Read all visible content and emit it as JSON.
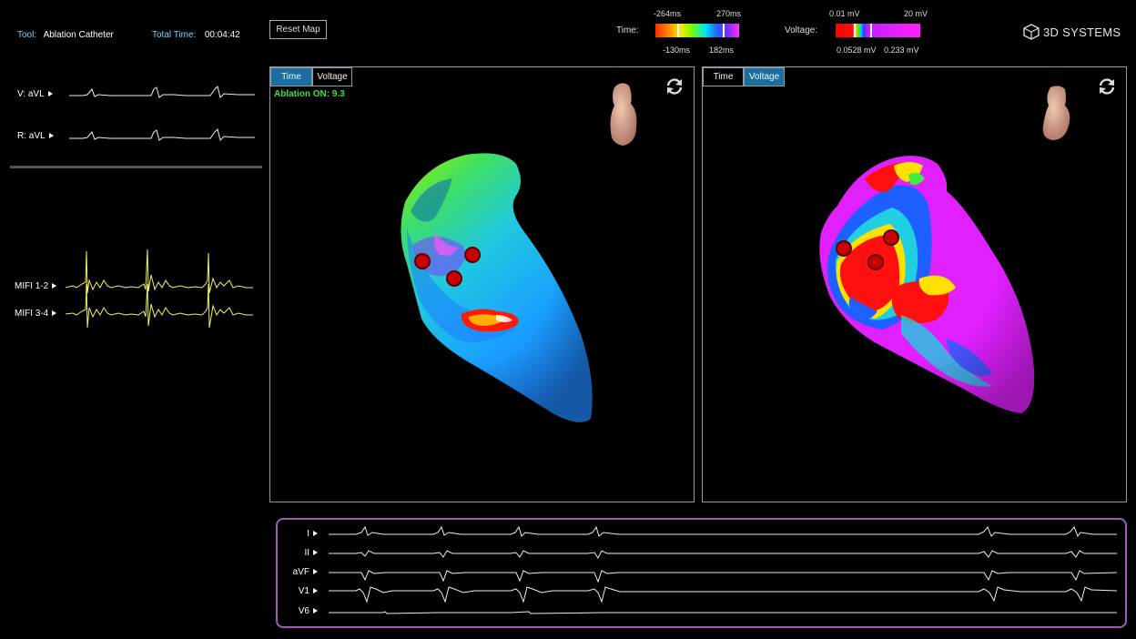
{
  "header": {
    "tool_label": "Tool:",
    "tool_value": "Ablation Catheter",
    "total_time_label": "Total Time:",
    "total_time_value": "00:04:42",
    "reset_button": "Reset Map",
    "brand": "3D SYSTEMS"
  },
  "time_scale": {
    "label": "Time:",
    "top_left": "-264ms",
    "top_right": "270ms",
    "bottom_left": "-130ms",
    "bottom_right": "182ms"
  },
  "voltage_scale": {
    "label": "Voltage:",
    "top_left": "0.01 mV",
    "top_right": "20 mV",
    "bottom_left": "0.0528 mV",
    "bottom_right": "0.233 mV"
  },
  "left_signals": {
    "v_avl": "V: aVL",
    "r_avl": "R: aVL",
    "mifi_12": "MIFI 1-2",
    "mifi_34": "MIFI 3-4"
  },
  "left_panel": {
    "tab_time": "Time",
    "tab_voltage": "Voltage",
    "active_tab": "Time",
    "ablation_status": "Ablation ON: 9.3"
  },
  "right_panel": {
    "tab_time": "Time",
    "tab_voltage": "Voltage",
    "active_tab": "Voltage"
  },
  "ecg_leads": [
    "I",
    "II",
    "aVF",
    "V1",
    "V6"
  ],
  "colors": {
    "accent_tab": "#1d6e9e",
    "label_blue": "#7fd3ff",
    "ablation_green": "#3ee03e",
    "ecg_border": "#a25ab6",
    "trace_yellow": "#f2f25a"
  },
  "icons": [
    "refresh-icon",
    "3d-systems-logo-icon",
    "heart-orientation-icon",
    "play-arrow-icon"
  ]
}
